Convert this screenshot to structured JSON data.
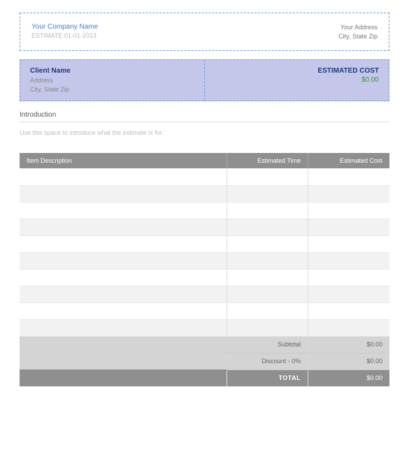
{
  "header": {
    "company_name": "Your Company Name",
    "estimate_label": "ESTIMATE",
    "estimate_date": "01-01-2013",
    "your_address": "Your Address",
    "your_city_state_zip": "City, State Zip"
  },
  "client": {
    "name": "Client Name",
    "address": "Address",
    "city_state_zip": "City, State Zip",
    "est_cost_label": "ESTIMATED COST",
    "est_cost_value": "$0.00"
  },
  "intro": {
    "heading": "Introduction",
    "placeholder": "Use this space to introduce what the estimate is for."
  },
  "table": {
    "columns": {
      "desc": "Item Description",
      "time": "Estimated Time",
      "cost": "Estimated Cost"
    },
    "row_count": 10,
    "header_bg": "#8f8f8f",
    "header_fg": "#ffffff",
    "row_even_bg": "#f2f2f2",
    "row_odd_bg": "#ffffff",
    "summary_bg": "#d4d4d4",
    "total_bg": "#8f8f8f"
  },
  "summary": {
    "subtotal_label": "Subtotal",
    "subtotal_value": "$0.00",
    "discount_label": "Discount - 0%",
    "discount_value": "$0.00",
    "total_label": "TOTAL",
    "total_value": "$0.00"
  },
  "colors": {
    "dashed_border": "#6b9bd1",
    "client_bg": "#c5c7ea",
    "company_name": "#4a7bc4",
    "muted": "#b8b8b8",
    "dark_navy": "#1a3a7a",
    "green": "#3a9a3a"
  }
}
